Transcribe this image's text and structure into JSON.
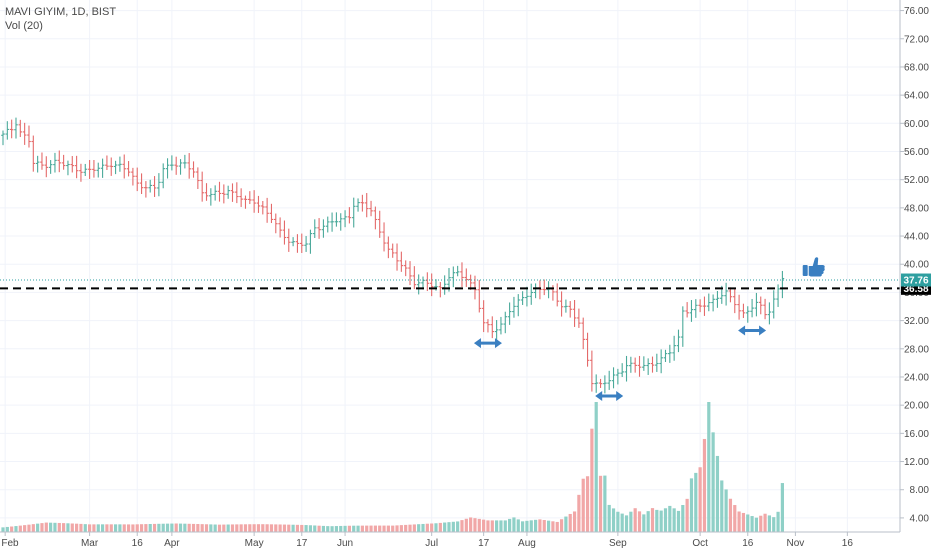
{
  "header": {
    "symbol_line": "MAVI GIYIM, 1D, BIST",
    "volume_line": "Vol (20)"
  },
  "colors": {
    "up": "#4aa99a",
    "down": "#e46a6a",
    "vol_up": "#8fd0c7",
    "vol_down": "#f1a7a7",
    "support_line": "#000000",
    "current_line": "#2e9fa0",
    "annotation_arrow": "#3a7fc1",
    "thumb": "#3a7fc1"
  },
  "icons": {
    "annotation": "thumbs-up-icon",
    "arrows": "double-arrow-icon"
  },
  "chart_data": {
    "type": "ohlc-bar",
    "y_axis": {
      "side": "right",
      "ticks": [
        "76.00",
        "72.00",
        "68.00",
        "64.00",
        "60.00",
        "56.00",
        "52.00",
        "48.00",
        "44.00",
        "40.00",
        "36.00",
        "32.00",
        "28.00",
        "24.00",
        "20.00",
        "16.00",
        "12.00",
        "8.00",
        "4.00"
      ],
      "range": [
        2,
        77.5
      ]
    },
    "x_axis": {
      "ticks": [
        {
          "label": "Feb",
          "t": 0.5
        },
        {
          "label": "Mar",
          "t": 20
        },
        {
          "label": "16",
          "t": 31
        },
        {
          "label": "Apr",
          "t": 39
        },
        {
          "label": "May",
          "t": 58
        },
        {
          "label": "17",
          "t": 69
        },
        {
          "label": "Jun",
          "t": 79
        },
        {
          "label": "Jul",
          "t": 99
        },
        {
          "label": "17",
          "t": 111
        },
        {
          "label": "Aug",
          "t": 121
        },
        {
          "label": "Sep",
          "t": 142
        },
        {
          "label": "Oct",
          "t": 161
        },
        {
          "label": "16",
          "t": 172
        },
        {
          "label": "Nov",
          "t": 183
        },
        {
          "label": "16",
          "t": 195
        }
      ],
      "range": [
        0,
        199
      ]
    },
    "price_keypoints": [
      [
        0,
        58.3
      ],
      [
        2,
        59.2
      ],
      [
        3,
        60.2
      ],
      [
        4,
        58.8
      ],
      [
        6,
        57.5
      ],
      [
        7,
        54.3
      ],
      [
        9,
        54.0
      ],
      [
        12,
        54.5
      ],
      [
        14,
        54.1
      ],
      [
        16,
        53.8
      ],
      [
        18,
        53.4
      ],
      [
        20,
        53.2
      ],
      [
        22,
        53.6
      ],
      [
        25,
        54.3
      ],
      [
        27,
        53.8
      ],
      [
        29,
        53.2
      ],
      [
        31,
        51.5
      ],
      [
        33,
        51.0
      ],
      [
        35,
        50.6
      ],
      [
        36,
        51.8
      ],
      [
        37,
        53.6
      ],
      [
        39,
        54.3
      ],
      [
        42,
        54.0
      ],
      [
        44,
        53.3
      ],
      [
        45,
        51.8
      ],
      [
        46,
        50.2
      ],
      [
        48,
        49.8
      ],
      [
        50,
        50.0
      ],
      [
        52,
        50.5
      ],
      [
        54,
        49.8
      ],
      [
        56,
        48.8
      ],
      [
        58,
        49.0
      ],
      [
        60,
        48.0
      ],
      [
        62,
        46.5
      ],
      [
        64,
        44.5
      ],
      [
        66,
        43.5
      ],
      [
        68,
        42.8
      ],
      [
        70,
        42.8
      ],
      [
        72,
        45.2
      ],
      [
        74,
        45.5
      ],
      [
        76,
        46.0
      ],
      [
        78,
        46.2
      ],
      [
        80,
        47.0
      ],
      [
        81,
        48.5
      ],
      [
        83,
        48.5
      ],
      [
        85,
        47.5
      ],
      [
        87,
        44.8
      ],
      [
        89,
        42.0
      ],
      [
        91,
        40.5
      ],
      [
        93,
        39.3
      ],
      [
        95,
        37.5
      ],
      [
        97,
        37.3
      ],
      [
        99,
        37.0
      ],
      [
        101,
        36.6
      ],
      [
        103,
        38.3
      ],
      [
        105,
        38.6
      ],
      [
        107,
        38.0
      ],
      [
        109,
        36.5
      ],
      [
        111,
        31.5
      ],
      [
        113,
        30.5
      ],
      [
        115,
        31.5
      ],
      [
        117,
        33.5
      ],
      [
        119,
        34.5
      ],
      [
        121,
        35.8
      ],
      [
        123,
        36.5
      ],
      [
        125,
        36.5
      ],
      [
        127,
        35.8
      ],
      [
        129,
        34.3
      ],
      [
        131,
        33.5
      ],
      [
        133,
        31.5
      ],
      [
        135,
        26.5
      ],
      [
        136,
        23.5
      ],
      [
        138,
        22.8
      ],
      [
        140,
        23.5
      ],
      [
        142,
        24.5
      ],
      [
        144,
        25.8
      ],
      [
        146,
        25.5
      ],
      [
        148,
        25.5
      ],
      [
        150,
        26.0
      ],
      [
        152,
        26.5
      ],
      [
        154,
        27.5
      ],
      [
        156,
        29.5
      ],
      [
        157,
        33.5
      ],
      [
        159,
        33.5
      ],
      [
        161,
        34.0
      ],
      [
        163,
        34.5
      ],
      [
        165,
        35.5
      ],
      [
        167,
        35.8
      ],
      [
        169,
        34.5
      ],
      [
        170,
        33.5
      ],
      [
        171,
        33.0
      ],
      [
        172,
        33.5
      ],
      [
        173,
        34.0
      ],
      [
        174,
        34.3
      ],
      [
        175,
        33.8
      ],
      [
        176,
        33.0
      ],
      [
        177,
        33.5
      ],
      [
        178,
        35.0
      ],
      [
        179,
        36.5
      ],
      [
        180,
        38.2
      ]
    ],
    "volume_keypoints": [
      [
        0,
        1.0
      ],
      [
        10,
        1.6
      ],
      [
        20,
        1.1
      ],
      [
        30,
        1.0
      ],
      [
        40,
        1.1
      ],
      [
        50,
        1.0
      ],
      [
        60,
        1.2
      ],
      [
        70,
        1.3
      ],
      [
        80,
        1.2
      ],
      [
        90,
        1.0
      ],
      [
        100,
        1.2
      ],
      [
        105,
        1.4
      ],
      [
        108,
        1.9
      ],
      [
        110,
        1.7
      ],
      [
        112,
        1.5
      ],
      [
        116,
        1.5
      ],
      [
        118,
        1.9
      ],
      [
        120,
        1.4
      ],
      [
        124,
        1.7
      ],
      [
        128,
        1.4
      ],
      [
        132,
        3.0
      ],
      [
        134,
        8.0
      ],
      [
        135,
        8.5
      ],
      [
        136,
        16.0
      ],
      [
        137,
        21.0
      ],
      [
        138,
        9.0
      ],
      [
        139,
        9.2
      ],
      [
        140,
        4.5
      ],
      [
        142,
        3.5
      ],
      [
        144,
        3.0
      ],
      [
        146,
        4.5
      ],
      [
        148,
        3.5
      ],
      [
        150,
        5.0
      ],
      [
        152,
        4.5
      ],
      [
        154,
        5.2
      ],
      [
        156,
        4.0
      ],
      [
        158,
        6.0
      ],
      [
        159,
        9.5
      ],
      [
        161,
        11.0
      ],
      [
        162,
        15.5
      ],
      [
        163,
        17.0
      ],
      [
        164,
        16.0
      ],
      [
        165,
        12.0
      ],
      [
        166,
        8.0
      ],
      [
        168,
        5.0
      ],
      [
        170,
        3.0
      ],
      [
        172,
        2.5
      ],
      [
        174,
        2.0
      ],
      [
        176,
        2.5
      ],
      [
        178,
        2.0
      ],
      [
        179,
        2.7
      ],
      [
        180,
        6.5
      ]
    ],
    "reference_lines": [
      {
        "label": "36.58",
        "value": 36.58,
        "style": "dashed"
      },
      {
        "label": "37.76",
        "value": 37.76,
        "style": "dotted"
      }
    ],
    "annotations": [
      {
        "type": "double-arrow",
        "x": 112,
        "y": 28.8
      },
      {
        "type": "double-arrow",
        "x": 140,
        "y": 21.3
      },
      {
        "type": "double-arrow",
        "x": 173,
        "y": 30.6
      },
      {
        "type": "thumbs-up",
        "x": 187,
        "y": 39.6
      }
    ]
  }
}
